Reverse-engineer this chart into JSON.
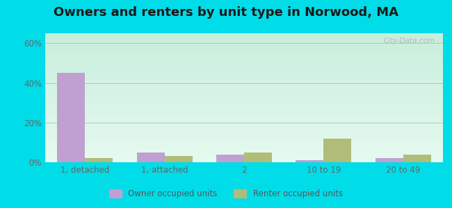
{
  "title": "Owners and renters by unit type in Norwood, MA",
  "categories": [
    "1, detached",
    "1, attached",
    "2",
    "10 to 19",
    "20 to 49"
  ],
  "owner_values": [
    45,
    5,
    4,
    1,
    2
  ],
  "renter_values": [
    2,
    3,
    5,
    12,
    4
  ],
  "owner_color": "#c0a0d0",
  "renter_color": "#b0bc78",
  "yticks": [
    0,
    20,
    40,
    60
  ],
  "ylim": [
    0,
    65
  ],
  "outer_color": "#00dce8",
  "bg_color_topleft": "#e8f8ee",
  "bg_color_topright": "#c8eedc",
  "bg_color_bottom": "#d8f4e8",
  "title_fontsize": 13,
  "watermark": "City-Data.com",
  "legend_labels": [
    "Owner occupied units",
    "Renter occupied units"
  ],
  "bar_width": 0.35
}
